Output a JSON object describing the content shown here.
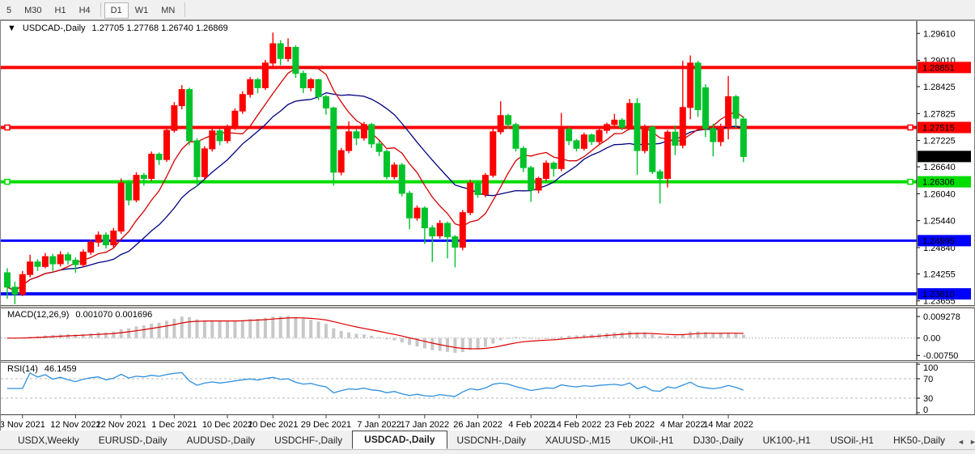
{
  "toolbar": {
    "timeframes": [
      {
        "label": "5",
        "active": false
      },
      {
        "label": "M30",
        "active": false
      },
      {
        "label": "H1",
        "active": false
      },
      {
        "label": "H4",
        "active": false
      },
      {
        "label": "D1",
        "active": true
      },
      {
        "label": "W1",
        "active": false
      },
      {
        "label": "MN",
        "active": false
      }
    ]
  },
  "chart": {
    "title": "USDCAD-,Daily",
    "ohlc": "1.27705 1.27768 1.26740 1.26869",
    "collapse_icon": "▼"
  },
  "indicators": {
    "macd": {
      "title": "MACD(12,26,9)",
      "values": "0.001070 0.001696"
    },
    "rsi": {
      "title": "RSI(14)",
      "value": "46.1459"
    }
  },
  "chart_data": {
    "type": "candlestick",
    "symbol": "USDCAD",
    "timeframe": "Daily",
    "current_bar": {
      "open": 1.27705,
      "high": 1.27768,
      "low": 1.2674,
      "close": 1.26869
    },
    "colors": {
      "bull": "#fe0000",
      "bear": "#00c22b",
      "ma_fast": "#d40000",
      "ma_slow": "#000080",
      "macd_hist": "#c8c8c8",
      "macd_signal": "#e00000",
      "rsi_line": "#2f8fdd",
      "level_dash": "#b9b9b9",
      "axis_line": "#000000",
      "badge_text": "#ffffff",
      "current_badge": "#000000"
    },
    "y_axis": {
      "min": 1.2356,
      "max": 1.29885,
      "ticks": [
        1.2961,
        1.2901,
        1.28425,
        1.27825,
        1.27225,
        1.2664,
        1.2604,
        1.2544,
        1.2484,
        1.24255,
        1.23655
      ]
    },
    "x_ticks": [
      {
        "index": 2,
        "label": "3 Nov 2021"
      },
      {
        "index": 9,
        "label": "12 Nov 2021"
      },
      {
        "index": 15,
        "label": "22 Nov 2021"
      },
      {
        "index": 22,
        "label": "1 Dec 2021"
      },
      {
        "index": 29,
        "label": "10 Dec 2021"
      },
      {
        "index": 35,
        "label": "20 Dec 2021"
      },
      {
        "index": 42,
        "label": "29 Dec 2021"
      },
      {
        "index": 49,
        "label": "7 Jan 2022"
      },
      {
        "index": 55,
        "label": "17 Jan 2022"
      },
      {
        "index": 62,
        "label": "26 Jan 2022"
      },
      {
        "index": 69,
        "label": "4 Feb 2022"
      },
      {
        "index": 75,
        "label": "14 Feb 2022"
      },
      {
        "index": 82,
        "label": "23 Feb 2022"
      },
      {
        "index": 89,
        "label": "4 Mar 2022"
      },
      {
        "index": 95,
        "label": "14 Mar 2022"
      }
    ],
    "h_lines": [
      {
        "price": 1.28851,
        "color": "#ff0000",
        "width": 4,
        "selected": false
      },
      {
        "price": 1.27515,
        "color": "#ff0000",
        "width": 4,
        "selected": true
      },
      {
        "price": 1.26306,
        "color": "#00dd00",
        "width": 4,
        "selected": true
      },
      {
        "price": 1.24995,
        "color": "#0000ff",
        "width": 3,
        "selected": false
      },
      {
        "price": 1.2381,
        "color": "#0000ff",
        "width": 4,
        "selected": false
      }
    ],
    "current_price": 1.26869,
    "overlays": {
      "sma_fast": 8,
      "sma_slow": 17
    },
    "macd": {
      "fast": 12,
      "slow": 26,
      "signal": 9,
      "range": [
        -0.0095,
        0.0128
      ],
      "axis_labels": [
        {
          "text": "0.009278",
          "value": 0.009278
        },
        {
          "text": "0.00",
          "value": 0
        },
        {
          "text": "-0.00750",
          "value": -0.0075
        }
      ]
    },
    "rsi": {
      "period": 14,
      "levels": [
        70,
        30
      ],
      "axis_labels": [
        {
          "text": "100",
          "value": 100
        },
        {
          "text": "70",
          "value": 70
        },
        {
          "text": "30",
          "value": 30
        },
        {
          "text": "0",
          "value": 0
        }
      ]
    },
    "candles": [
      [
        1.2428,
        1.2438,
        1.237,
        1.2396
      ],
      [
        1.2396,
        1.2408,
        1.2358,
        1.238
      ],
      [
        1.238,
        1.2432,
        1.2376,
        1.2424
      ],
      [
        1.2424,
        1.2468,
        1.2418,
        1.2452
      ],
      [
        1.2452,
        1.2458,
        1.2432,
        1.2442
      ],
      [
        1.2442,
        1.2472,
        1.2438,
        1.2464
      ],
      [
        1.2464,
        1.247,
        1.2432,
        1.2448
      ],
      [
        1.2448,
        1.2476,
        1.2442,
        1.2468
      ],
      [
        1.2468,
        1.2474,
        1.2446,
        1.2456
      ],
      [
        1.2456,
        1.2462,
        1.2428,
        1.2446
      ],
      [
        1.2446,
        1.248,
        1.244,
        1.2474
      ],
      [
        1.2474,
        1.2502,
        1.2468,
        1.2496
      ],
      [
        1.2496,
        1.252,
        1.2486,
        1.2512
      ],
      [
        1.2512,
        1.2518,
        1.2482,
        1.249
      ],
      [
        1.249,
        1.2528,
        1.2484,
        1.2521
      ],
      [
        1.2521,
        1.2638,
        1.2515,
        1.2628
      ],
      [
        1.2628,
        1.2634,
        1.2578,
        1.259
      ],
      [
        1.259,
        1.2652,
        1.2585,
        1.2645
      ],
      [
        1.2645,
        1.265,
        1.2622,
        1.2638
      ],
      [
        1.2638,
        1.2698,
        1.2632,
        1.2692
      ],
      [
        1.2692,
        1.2696,
        1.2668,
        1.268
      ],
      [
        1.268,
        1.2752,
        1.2675,
        1.2745
      ],
      [
        1.2745,
        1.2808,
        1.274,
        1.28
      ],
      [
        1.28,
        1.2846,
        1.2792,
        1.2836
      ],
      [
        1.2836,
        1.284,
        1.2712,
        1.2722
      ],
      [
        1.2722,
        1.2728,
        1.262,
        1.2642
      ],
      [
        1.2642,
        1.271,
        1.2636,
        1.2704
      ],
      [
        1.2704,
        1.275,
        1.2698,
        1.2744
      ],
      [
        1.2744,
        1.2748,
        1.2712,
        1.2722
      ],
      [
        1.2722,
        1.2758,
        1.2716,
        1.2752
      ],
      [
        1.2752,
        1.2794,
        1.2746,
        1.2788
      ],
      [
        1.2788,
        1.2832,
        1.2782,
        1.2825
      ],
      [
        1.2825,
        1.2864,
        1.2818,
        1.2858
      ],
      [
        1.2858,
        1.2862,
        1.2828,
        1.284
      ],
      [
        1.284,
        1.2902,
        1.2835,
        1.2895
      ],
      [
        1.2895,
        1.2963,
        1.2888,
        1.2938
      ],
      [
        1.2938,
        1.2946,
        1.289,
        1.2905
      ],
      [
        1.2905,
        1.295,
        1.2898,
        1.293
      ],
      [
        1.293,
        1.2935,
        1.2862,
        1.2872
      ],
      [
        1.2872,
        1.2878,
        1.2828,
        1.284
      ],
      [
        1.284,
        1.2862,
        1.2832,
        1.2858
      ],
      [
        1.2858,
        1.286,
        1.2812,
        1.282
      ],
      [
        1.282,
        1.2824,
        1.278,
        1.2795
      ],
      [
        1.2795,
        1.2798,
        1.2622,
        1.2652
      ],
      [
        1.2652,
        1.2706,
        1.2645,
        1.27
      ],
      [
        1.27,
        1.2765,
        1.2694,
        1.2742
      ],
      [
        1.2742,
        1.2748,
        1.2712,
        1.2728
      ],
      [
        1.2728,
        1.2764,
        1.2722,
        1.2758
      ],
      [
        1.2758,
        1.2762,
        1.2706,
        1.2715
      ],
      [
        1.2715,
        1.2722,
        1.2688,
        1.2698
      ],
      [
        1.2698,
        1.2702,
        1.2636,
        1.2642
      ],
      [
        1.2642,
        1.2674,
        1.2636,
        1.2668
      ],
      [
        1.2668,
        1.2672,
        1.2598,
        1.2605
      ],
      [
        1.2605,
        1.261,
        1.2525,
        1.255
      ],
      [
        1.255,
        1.2578,
        1.2544,
        1.2572
      ],
      [
        1.2572,
        1.2576,
        1.2492,
        1.2528
      ],
      [
        1.2528,
        1.2534,
        1.2452,
        1.251
      ],
      [
        1.251,
        1.2545,
        1.2504,
        1.2538
      ],
      [
        1.2538,
        1.2542,
        1.246,
        1.2508
      ],
      [
        1.2508,
        1.2512,
        1.244,
        1.2485
      ],
      [
        1.2485,
        1.2568,
        1.2478,
        1.2562
      ],
      [
        1.2562,
        1.2635,
        1.2556,
        1.2628
      ],
      [
        1.2628,
        1.2632,
        1.2595,
        1.2602
      ],
      [
        1.2602,
        1.265,
        1.2596,
        1.2645
      ],
      [
        1.2645,
        1.2748,
        1.264,
        1.2742
      ],
      [
        1.2742,
        1.281,
        1.2736,
        1.2778
      ],
      [
        1.2778,
        1.2782,
        1.2748,
        1.2758
      ],
      [
        1.2758,
        1.2762,
        1.2698,
        1.2705
      ],
      [
        1.2705,
        1.271,
        1.2652,
        1.2662
      ],
      [
        1.2662,
        1.2666,
        1.2586,
        1.2612
      ],
      [
        1.2612,
        1.2642,
        1.2605,
        1.2638
      ],
      [
        1.2638,
        1.2678,
        1.2632,
        1.2672
      ],
      [
        1.2672,
        1.2676,
        1.2642,
        1.266
      ],
      [
        1.266,
        1.2784,
        1.2654,
        1.2748
      ],
      [
        1.2748,
        1.2752,
        1.2712,
        1.2722
      ],
      [
        1.2722,
        1.2726,
        1.2698,
        1.2705
      ],
      [
        1.2705,
        1.274,
        1.27,
        1.2735
      ],
      [
        1.2735,
        1.2738,
        1.2712,
        1.272
      ],
      [
        1.272,
        1.275,
        1.2714,
        1.2745
      ],
      [
        1.2745,
        1.2762,
        1.2738,
        1.2758
      ],
      [
        1.2758,
        1.2782,
        1.2752,
        1.2768
      ],
      [
        1.2768,
        1.2772,
        1.2745,
        1.2752
      ],
      [
        1.2752,
        1.2815,
        1.2746,
        1.2805
      ],
      [
        1.2805,
        1.2817,
        1.2646,
        1.27
      ],
      [
        1.27,
        1.2758,
        1.2694,
        1.2752
      ],
      [
        1.2752,
        1.2756,
        1.2648,
        1.2653
      ],
      [
        1.2653,
        1.2658,
        1.2582,
        1.2638
      ],
      [
        1.2638,
        1.2746,
        1.2618,
        1.2741
      ],
      [
        1.2741,
        1.2756,
        1.269,
        1.2712
      ],
      [
        1.2712,
        1.29,
        1.2705,
        1.2796
      ],
      [
        1.2796,
        1.2912,
        1.277,
        1.2895
      ],
      [
        1.2895,
        1.29,
        1.2775,
        1.2791
      ],
      [
        1.284,
        1.2848,
        1.273,
        1.2749
      ],
      [
        1.2749,
        1.276,
        1.2687,
        1.272
      ],
      [
        1.272,
        1.276,
        1.271,
        1.2753
      ],
      [
        1.2753,
        1.2866,
        1.2725,
        1.282
      ],
      [
        1.282,
        1.2824,
        1.275,
        1.2772
      ],
      [
        1.27705,
        1.27768,
        1.2674,
        1.26869
      ]
    ]
  },
  "tabs": [
    {
      "label": "USDX,Weekly",
      "active": false
    },
    {
      "label": "EURUSD-,Daily",
      "active": false
    },
    {
      "label": "AUDUSD-,Daily",
      "active": false
    },
    {
      "label": "USDCHF-,Daily",
      "active": false
    },
    {
      "label": "USDCAD-,Daily",
      "active": true
    },
    {
      "label": "USDCNH-,Daily",
      "active": false
    },
    {
      "label": "XAUUSD-,M15",
      "active": false
    },
    {
      "label": "UKOil-,H1",
      "active": false
    },
    {
      "label": "DJ30-,Daily",
      "active": false
    },
    {
      "label": "UK100-,H1",
      "active": false
    },
    {
      "label": "USOil-,H1",
      "active": false
    },
    {
      "label": "HK50-,Daily",
      "active": false
    }
  ],
  "tab_nav": {
    "left": "◄",
    "right": "►"
  }
}
